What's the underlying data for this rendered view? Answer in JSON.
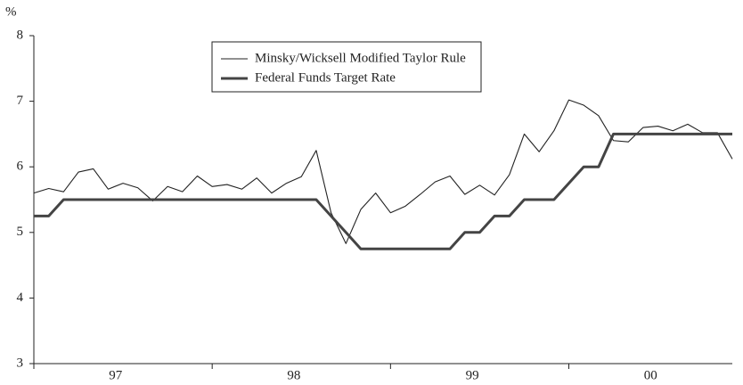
{
  "chart_data": {
    "type": "line",
    "y_label": "%",
    "categories": [
      null,
      null,
      null,
      null,
      null,
      null,
      "97",
      null,
      null,
      null,
      null,
      null,
      null,
      null,
      null,
      null,
      null,
      null,
      "98",
      null,
      null,
      null,
      null,
      null,
      null,
      null,
      null,
      null,
      null,
      null,
      "99",
      null,
      null,
      null,
      null,
      null,
      null,
      null,
      null,
      null,
      null,
      null,
      "00",
      null,
      null,
      null,
      null,
      null
    ],
    "series": [
      {
        "name": "Minsky/Wicksell Modified Taylor Rule",
        "color": "#222222",
        "values": [
          5.6,
          5.67,
          5.62,
          5.92,
          5.97,
          5.66,
          5.75,
          5.68,
          5.48,
          5.7,
          5.62,
          5.86,
          5.7,
          5.73,
          5.66,
          5.83,
          5.6,
          5.75,
          5.85,
          6.25,
          5.3,
          4.83,
          5.35,
          5.6,
          5.3,
          5.4,
          5.58,
          5.77,
          5.86,
          5.58,
          5.72,
          5.57,
          5.88,
          6.5,
          6.23,
          6.55,
          7.02,
          6.94,
          6.78,
          6.4,
          6.38,
          6.6,
          6.62,
          6.55,
          6.65,
          6.52,
          6.52,
          6.12
        ]
      },
      {
        "name": "Federal Funds Target Rate",
        "color": "#444444",
        "values": [
          5.25,
          5.25,
          5.5,
          5.5,
          5.5,
          5.5,
          5.5,
          5.5,
          5.5,
          5.5,
          5.5,
          5.5,
          5.5,
          5.5,
          5.5,
          5.5,
          5.5,
          5.5,
          5.5,
          5.5,
          5.25,
          5.0,
          4.75,
          4.75,
          4.75,
          4.75,
          4.75,
          4.75,
          4.75,
          5.0,
          5.0,
          5.25,
          5.25,
          5.5,
          5.5,
          5.5,
          5.75,
          6.0,
          6.0,
          6.5,
          6.5,
          6.5,
          6.5,
          6.5,
          6.5,
          6.5,
          6.5,
          6.5
        ]
      }
    ],
    "ylim": [
      3,
      8
    ],
    "yticks": [
      3,
      4,
      5,
      6,
      7,
      8
    ]
  }
}
